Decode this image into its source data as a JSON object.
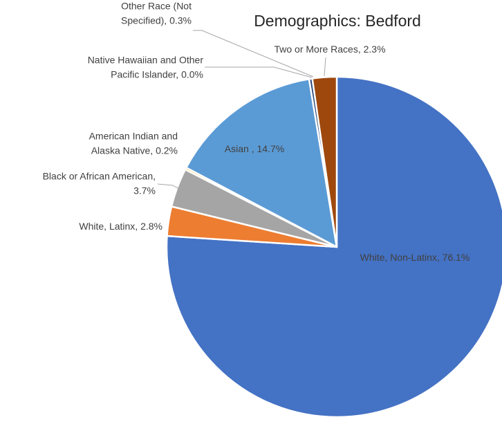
{
  "chart_data": {
    "type": "pie",
    "title": "Demographics: Bedford",
    "start_angle_deg": 0,
    "direction": "clockwise",
    "slices": [
      {
        "name": "White, Non-Latinx",
        "value": 76.1,
        "value_label": "76.1%",
        "color": "#4472c4",
        "label_lines": [
          "White, Non-Latinx, 76.1%"
        ]
      },
      {
        "name": "White, Latinx",
        "value": 2.8,
        "value_label": "2.8%",
        "color": "#ed7d31",
        "label_lines": [
          "White, Latinx, 2.8%"
        ]
      },
      {
        "name": "Black or African American",
        "value": 3.7,
        "value_label": "3.7%",
        "color": "#a5a5a5",
        "label_lines": [
          "Black or African American,",
          "3.7%"
        ]
      },
      {
        "name": "American Indian and Alaska Native",
        "value": 0.2,
        "value_label": "0.2%",
        "color": "#ffc000",
        "label_lines": [
          "American Indian and",
          "Alaska Native, 0.2%"
        ]
      },
      {
        "name": "Asian",
        "value": 14.7,
        "value_label": "14.7%",
        "color": "#5b9bd5",
        "label_lines": [
          "Asian , 14.7%"
        ]
      },
      {
        "name": "Native Hawaiian and Other Pacific Islander",
        "value": 0.0,
        "value_label": "0.0%",
        "color": "#70ad47",
        "label_lines": [
          "Native Hawaiian and Other",
          "Pacific Islander, 0.0%"
        ]
      },
      {
        "name": "Other Race (Not Specified)",
        "value": 0.3,
        "value_label": "0.3%",
        "color": "#264478",
        "label_lines": [
          "Other Race (Not",
          "Specified), 0.3%"
        ]
      },
      {
        "name": "Two or More Races",
        "value": 2.3,
        "value_label": "2.3%",
        "color": "#9e480e",
        "label_lines": [
          "Two or More Races, 2.3%"
        ]
      }
    ],
    "legend": "none"
  }
}
